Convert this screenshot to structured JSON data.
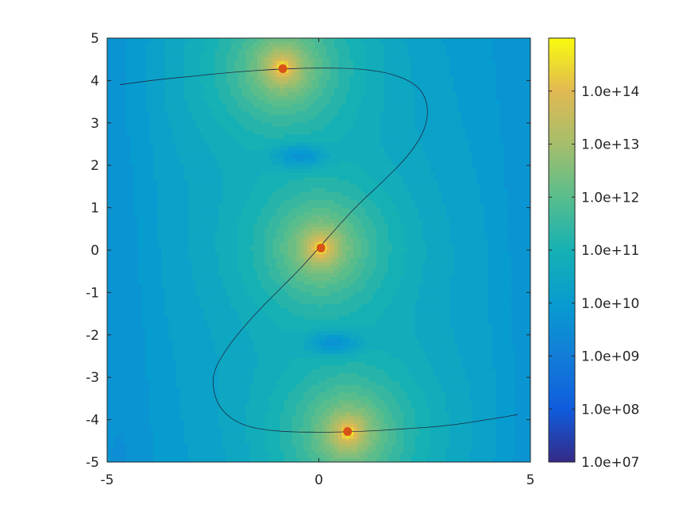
{
  "chart_data": {
    "type": "heatmap",
    "title": "",
    "xlabel": "",
    "ylabel": "",
    "xlim": [
      -5,
      5
    ],
    "ylim": [
      -5,
      5
    ],
    "x_ticks": [
      "-5",
      "0",
      "5"
    ],
    "y_ticks": [
      "5",
      "4",
      "3",
      "2",
      "1",
      "0",
      "-1",
      "-2",
      "-3",
      "-4",
      "-5"
    ],
    "color_scale": "log",
    "colorbar": {
      "range": [
        10000000.0,
        1000000000000000.0
      ],
      "tick_values": [
        10000000.0,
        100000000.0,
        1000000000.0,
        10000000000.0,
        100000000000.0,
        1000000000000.0,
        10000000000000.0,
        100000000000000.0
      ],
      "tick_labels": [
        "1.0e+07",
        "1.0e+08",
        "1.0e+09",
        "1.0e+10",
        "1.0e+11",
        "1.0e+12",
        "1.0e+13",
        "1.0e+14"
      ]
    },
    "colormap": "parula",
    "background_level": 3000000000.0,
    "peaks": [
      {
        "x": -0.85,
        "y": 4.3
      },
      {
        "x": 0.05,
        "y": 0.05
      },
      {
        "x": 0.7,
        "y": -4.3
      }
    ],
    "minima": [
      {
        "x": -0.45,
        "y": 2.22
      },
      {
        "x": 0.35,
        "y": -2.2
      }
    ],
    "markers": [
      {
        "x": -0.85,
        "y": 4.28
      },
      {
        "x": 0.05,
        "y": 0.05
      },
      {
        "x": 0.68,
        "y": -4.28
      }
    ],
    "curve": {
      "x": [
        -4.7,
        -4.0,
        -3.0,
        -2.0,
        -1.0,
        0.0,
        1.0,
        1.8,
        2.4,
        2.6,
        2.5,
        2.1,
        1.5,
        0.9,
        0.4,
        0.0,
        -0.4,
        -0.9,
        -1.5,
        -2.1,
        -2.5,
        -2.5,
        -2.3,
        -1.8,
        -1.0,
        0.0,
        1.0,
        2.0,
        3.0,
        4.0,
        4.7
      ],
      "y": [
        3.9,
        4.0,
        4.1,
        4.2,
        4.27,
        4.3,
        4.28,
        4.15,
        3.85,
        3.35,
        2.8,
        2.2,
        1.6,
        1.05,
        0.5,
        0.05,
        -0.4,
        -0.9,
        -1.5,
        -2.2,
        -2.85,
        -3.35,
        -3.8,
        -4.15,
        -4.28,
        -4.3,
        -4.28,
        -4.22,
        -4.15,
        -4.0,
        -3.88
      ]
    },
    "colors": {
      "marker": "#d95319",
      "curve": "#1f2a44",
      "axes": "#262626"
    }
  }
}
